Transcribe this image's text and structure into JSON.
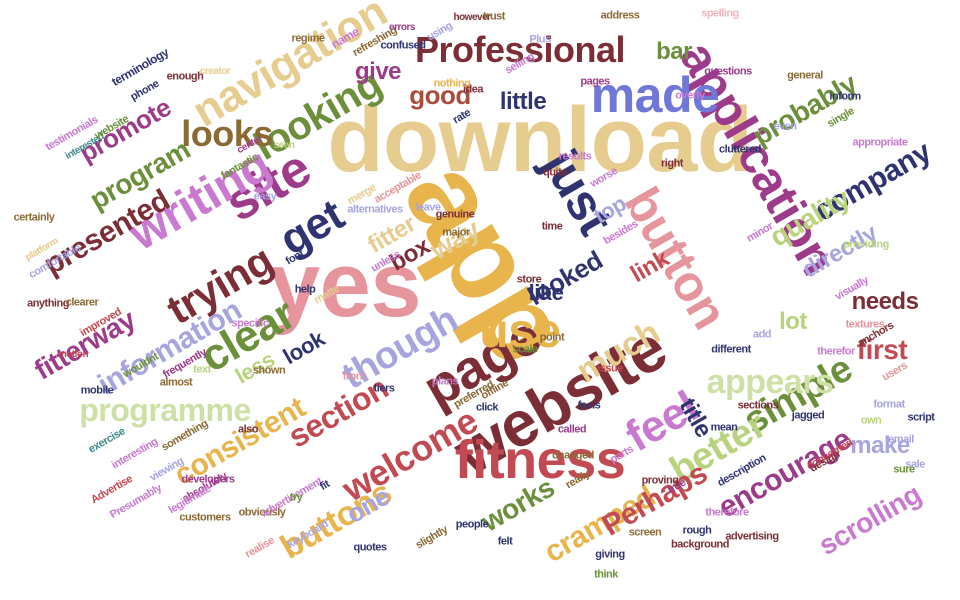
{
  "palette": {
    "beige": "#e6cc8f",
    "gold": "#e8b44c",
    "pink": "#e6959c",
    "red": "#c24a52",
    "maroon": "#7b2e36",
    "navy": "#2f3470",
    "blue": "#6f78d6",
    "lavender": "#a8a4e0",
    "orchid": "#c97ad0",
    "plum": "#9d3a8a",
    "olive": "#6b8f3a",
    "lime": "#b9d37d",
    "sage": "#cfe0a6",
    "brown": "#8a6a35",
    "rust": "#a84e3c",
    "teal": "#3d8a8a",
    "lightpink": "#f0b3c0"
  },
  "words": [
    {
      "text": "download",
      "color": "beige"
    },
    {
      "text": "app",
      "color": "gold"
    },
    {
      "text": "yes",
      "color": "pink"
    },
    {
      "text": "website",
      "color": "maroon"
    },
    {
      "text": "fitness",
      "color": "red"
    },
    {
      "text": "page",
      "color": "maroon"
    },
    {
      "text": "application",
      "color": "plum"
    },
    {
      "text": "button",
      "color": "pink"
    },
    {
      "text": "made",
      "color": "blue"
    },
    {
      "text": "Professional",
      "color": "maroon"
    },
    {
      "text": "just",
      "color": "navy"
    },
    {
      "text": "site",
      "color": "plum"
    },
    {
      "text": "navigation",
      "color": "beige"
    },
    {
      "text": "writing",
      "color": "orchid"
    },
    {
      "text": "looking",
      "color": "olive"
    },
    {
      "text": "get",
      "color": "navy"
    },
    {
      "text": "looks",
      "color": "brown"
    },
    {
      "text": "clear",
      "color": "olive"
    },
    {
      "text": "trying",
      "color": "maroon"
    },
    {
      "text": "use",
      "color": "gold"
    },
    {
      "text": "feel",
      "color": "orchid"
    },
    {
      "text": "though",
      "color": "lavender"
    },
    {
      "text": "welcome",
      "color": "red"
    },
    {
      "text": "section",
      "color": "red"
    },
    {
      "text": "buttons",
      "color": "gold"
    },
    {
      "text": "simple",
      "color": "olive"
    },
    {
      "text": "better",
      "color": "lime"
    },
    {
      "text": "appears",
      "color": "sage"
    },
    {
      "text": "much",
      "color": "beige"
    },
    {
      "text": "encourage",
      "color": "plum"
    },
    {
      "text": "consistent",
      "color": "gold"
    },
    {
      "text": "programme",
      "color": "sage"
    },
    {
      "text": "information",
      "color": "lavender"
    },
    {
      "text": "presented",
      "color": "maroon"
    },
    {
      "text": "program",
      "color": "olive"
    },
    {
      "text": "promote",
      "color": "plum"
    },
    {
      "text": "fitterway",
      "color": "plum"
    },
    {
      "text": "company",
      "color": "navy"
    },
    {
      "text": "quality",
      "color": "lime"
    },
    {
      "text": "probably",
      "color": "olive"
    },
    {
      "text": "directly",
      "color": "lavender"
    },
    {
      "text": "scrolling",
      "color": "orchid"
    },
    {
      "text": "cramped",
      "color": "gold"
    },
    {
      "text": "Perhaps",
      "color": "red"
    },
    {
      "text": "works",
      "color": "olive"
    },
    {
      "text": "one",
      "color": "lavender"
    },
    {
      "text": "make",
      "color": "lavender"
    },
    {
      "text": "title",
      "color": "navy"
    },
    {
      "text": "first",
      "color": "red"
    },
    {
      "text": "needs",
      "color": "maroon"
    },
    {
      "text": "lot",
      "color": "lime"
    },
    {
      "text": "link",
      "color": "red"
    },
    {
      "text": "like",
      "color": "navy"
    },
    {
      "text": "looked",
      "color": "navy"
    },
    {
      "text": "box",
      "color": "maroon"
    },
    {
      "text": "way",
      "color": "beige"
    },
    {
      "text": "top",
      "color": "lavender"
    },
    {
      "text": "fitter",
      "color": "beige"
    },
    {
      "text": "little",
      "color": "navy"
    },
    {
      "text": "good",
      "color": "rust"
    },
    {
      "text": "give",
      "color": "plum"
    },
    {
      "text": "bar",
      "color": "olive"
    },
    {
      "text": "less",
      "color": "lime"
    },
    {
      "text": "look",
      "color": "navy"
    },
    {
      "text": "terminology",
      "color": "navy"
    },
    {
      "text": "regime",
      "color": "brown"
    },
    {
      "text": "name",
      "color": "orchid"
    },
    {
      "text": "refreshing",
      "color": "brown"
    },
    {
      "text": "confused",
      "color": "navy"
    },
    {
      "text": "errors",
      "color": "plum"
    },
    {
      "text": "using",
      "color": "lavender"
    },
    {
      "text": "however",
      "color": "maroon"
    },
    {
      "text": "trust",
      "color": "brown"
    },
    {
      "text": "address",
      "color": "brown"
    },
    {
      "text": "spelling",
      "color": "lightpink"
    },
    {
      "text": "questions",
      "color": "plum"
    },
    {
      "text": "general",
      "color": "brown"
    },
    {
      "text": "inform",
      "color": "navy"
    },
    {
      "text": "appropriate",
      "color": "orchid"
    },
    {
      "text": "enough",
      "color": "maroon"
    },
    {
      "text": "creator",
      "color": "beige"
    },
    {
      "text": "pages",
      "color": "plum"
    },
    {
      "text": "overly",
      "color": "orchid"
    },
    {
      "text": "nothing",
      "color": "gold"
    },
    {
      "text": "idea",
      "color": "maroon"
    },
    {
      "text": "rate",
      "color": "navy"
    },
    {
      "text": "testimonials",
      "color": "orchid"
    },
    {
      "text": "interested",
      "color": "teal"
    },
    {
      "text": "phone",
      "color": "navy"
    },
    {
      "text": "website",
      "color": "olive"
    },
    {
      "text": "fantastic",
      "color": "olive"
    },
    {
      "text": "easy",
      "color": "lavender"
    },
    {
      "text": "center",
      "color": "plum"
    },
    {
      "text": "seen",
      "color": "lime"
    },
    {
      "text": "merge",
      "color": "beige"
    },
    {
      "text": "acceptable",
      "color": "pink"
    },
    {
      "text": "alternatives",
      "color": "lavender"
    },
    {
      "text": "genuine",
      "color": "maroon"
    },
    {
      "text": "quite",
      "color": "maroon"
    },
    {
      "text": "results",
      "color": "orchid"
    },
    {
      "text": "right",
      "color": "maroon"
    },
    {
      "text": "certainly",
      "color": "brown"
    },
    {
      "text": "platform",
      "color": "beige"
    },
    {
      "text": "comfortable",
      "color": "lavender"
    },
    {
      "text": "anything",
      "color": "maroon"
    },
    {
      "text": "clearer",
      "color": "brown"
    },
    {
      "text": "improved",
      "color": "red"
    },
    {
      "text": "motion",
      "color": "red"
    },
    {
      "text": "mobile",
      "color": "navy"
    },
    {
      "text": "wouldnt",
      "color": "olive"
    },
    {
      "text": "almost",
      "color": "brown"
    },
    {
      "text": "frequently",
      "color": "plum"
    },
    {
      "text": "text",
      "color": "lime"
    },
    {
      "text": "exercise",
      "color": "teal"
    },
    {
      "text": "interesting",
      "color": "orchid"
    },
    {
      "text": "viewing",
      "color": "lavender"
    },
    {
      "text": "something",
      "color": "brown"
    },
    {
      "text": "absolutely",
      "color": "plum"
    },
    {
      "text": "legitimate",
      "color": "orchid"
    },
    {
      "text": "Advertise",
      "color": "red"
    },
    {
      "text": "Presumably",
      "color": "orchid"
    },
    {
      "text": "developers",
      "color": "plum"
    },
    {
      "text": "customers",
      "color": "brown"
    },
    {
      "text": "obviously",
      "color": "brown"
    },
    {
      "text": "realise",
      "color": "pink"
    },
    {
      "text": "advertisement",
      "color": "orchid"
    },
    {
      "text": "keyboard",
      "color": "lavender"
    },
    {
      "text": "quotes",
      "color": "navy"
    },
    {
      "text": "slightly",
      "color": "brown"
    },
    {
      "text": "people",
      "color": "navy"
    },
    {
      "text": "felt",
      "color": "navy"
    },
    {
      "text": "scale",
      "color": "olive"
    },
    {
      "text": "point",
      "color": "brown"
    },
    {
      "text": "click",
      "color": "navy"
    },
    {
      "text": "store",
      "color": "maroon"
    },
    {
      "text": "therefor",
      "color": "orchid"
    },
    {
      "text": "add",
      "color": "lavender"
    },
    {
      "text": "different",
      "color": "navy"
    },
    {
      "text": "sections",
      "color": "maroon"
    },
    {
      "text": "design",
      "color": "maroon"
    },
    {
      "text": "advertising",
      "color": "maroon"
    },
    {
      "text": "giving",
      "color": "navy"
    },
    {
      "text": "think",
      "color": "olive"
    },
    {
      "text": "background",
      "color": "maroon"
    },
    {
      "text": "changed",
      "color": "brown"
    },
    {
      "text": "feels",
      "color": "navy"
    },
    {
      "text": "called",
      "color": "plum"
    },
    {
      "text": "really",
      "color": "brown"
    },
    {
      "text": "screen",
      "color": "brown"
    },
    {
      "text": "parts",
      "color": "orchid"
    },
    {
      "text": "email",
      "color": "lavender"
    },
    {
      "text": "concerned",
      "color": "red"
    },
    {
      "text": "Plus",
      "color": "lavender"
    },
    {
      "text": "selling",
      "color": "orchid"
    },
    {
      "text": "issue",
      "color": "red"
    },
    {
      "text": "offline",
      "color": "brown"
    },
    {
      "text": "plans",
      "color": "orchid"
    },
    {
      "text": "time",
      "color": "maroon"
    },
    {
      "text": "providing",
      "color": "lime"
    },
    {
      "text": "visually",
      "color": "orchid"
    },
    {
      "text": "textures",
      "color": "pink"
    },
    {
      "text": "jagged",
      "color": "navy"
    },
    {
      "text": "tiers",
      "color": "navy"
    },
    {
      "text": "front",
      "color": "pink"
    },
    {
      "text": "preferred",
      "color": "brown"
    },
    {
      "text": "shown",
      "color": "brown"
    },
    {
      "text": "specific",
      "color": "orchid"
    },
    {
      "text": "matte",
      "color": "beige"
    },
    {
      "text": "font",
      "color": "navy"
    },
    {
      "text": "even",
      "color": "lavender"
    },
    {
      "text": "single",
      "color": "olive"
    },
    {
      "text": "cluttered",
      "color": "navy"
    },
    {
      "text": "minor",
      "color": "orchid"
    },
    {
      "text": "worse",
      "color": "orchid"
    },
    {
      "text": "besides",
      "color": "orchid"
    },
    {
      "text": "major",
      "color": "brown"
    },
    {
      "text": "leave",
      "color": "lavender"
    },
    {
      "text": "unless",
      "color": "orchid"
    },
    {
      "text": "help",
      "color": "navy"
    },
    {
      "text": "fit",
      "color": "navy"
    },
    {
      "text": "also",
      "color": "maroon"
    },
    {
      "text": "try",
      "color": "olive"
    },
    {
      "text": "mean",
      "color": "navy"
    },
    {
      "text": "sale",
      "color": "lavender"
    },
    {
      "text": "therefore",
      "color": "orchid"
    },
    {
      "text": "description",
      "color": "navy"
    },
    {
      "text": "rough",
      "color": "navy"
    },
    {
      "text": "true",
      "color": "plum"
    },
    {
      "text": "proving",
      "color": "maroon"
    },
    {
      "text": "anchors",
      "color": "maroon"
    },
    {
      "text": "users",
      "color": "pink"
    },
    {
      "text": "script",
      "color": "navy"
    },
    {
      "text": "format",
      "color": "lavender"
    },
    {
      "text": "sure",
      "color": "olive"
    },
    {
      "text": "own",
      "color": "lime"
    }
  ]
}
